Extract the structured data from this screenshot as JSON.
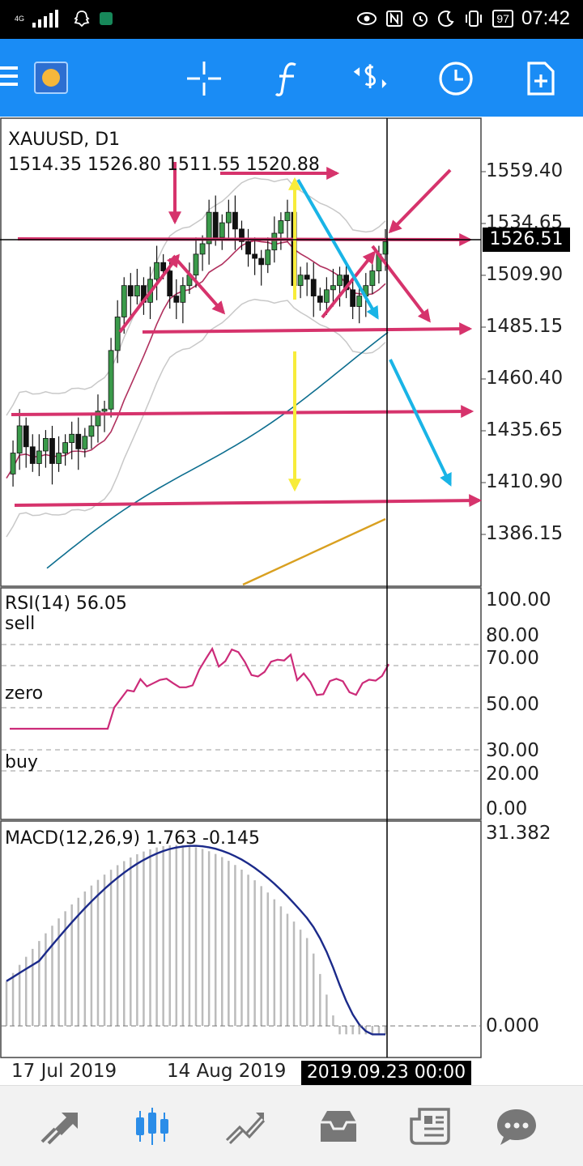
{
  "status": {
    "network": "4G",
    "battery": "97",
    "time": "07:42"
  },
  "toolbar": {
    "icons": [
      "menu-icon",
      "app-logo-icon",
      "crosshair-icon",
      "indicators-icon",
      "trade-icon",
      "timeframe-icon",
      "new-chart-icon"
    ]
  },
  "chart": {
    "symbol_line": "XAUUSD, D1",
    "ohlc_line": "1514.35 1526.80 1511.55 1520.88",
    "current_price": "1526.51",
    "price_ticks": [
      "1559.40",
      "1534.65",
      "1509.90",
      "1485.15",
      "1460.40",
      "1435.65",
      "1410.90",
      "1386.15"
    ],
    "cursor_date": "2019.09.23 00:00",
    "dates": [
      "17 Jul 2019",
      "14 Aug 2019"
    ],
    "colors": {
      "candle_up": "#3a9a4a",
      "candle_down": "#111111",
      "bands": "#c8c8c8",
      "ma_fast": "#b0305e",
      "ma_slow": "#0d6e8f",
      "ma_long": "#d9a020",
      "drawing_pink": "#d6336c",
      "drawing_cyan": "#19b4e6",
      "drawing_yellow": "#f7ec3a"
    }
  },
  "rsi": {
    "title": "RSI(14) 56.05",
    "label_sell": "sell",
    "label_zero": "zero",
    "label_buy": "buy",
    "levels": [
      "100.00",
      "80.00",
      "70.00",
      "50.00",
      "30.00",
      "20.00",
      "0.00"
    ]
  },
  "macd": {
    "title": "MACD(12,26,9) 1.763 -0.145",
    "max_label": "31.382",
    "zero_label": "0.000"
  },
  "bottomnav": {
    "items": [
      "quotes-icon",
      "chart-icon",
      "trade-icon",
      "history-icon",
      "news-icon",
      "messages-icon"
    ],
    "active": "chart-icon"
  },
  "chart_data": [
    {
      "type": "line",
      "title": "XAUUSD, D1",
      "y_ticks": [
        1559.4,
        1534.65,
        1509.9,
        1485.15,
        1460.4,
        1435.65,
        1410.9,
        1386.15
      ],
      "x_ticks": [
        "17 Jul 2019",
        "14 Aug 2019",
        "2019.09.23 00:00"
      ],
      "series": [
        {
          "name": "",
          "values": [
            1415,
            1425,
            1438,
            1428,
            1420,
            1426,
            1432,
            1420,
            1425,
            1430,
            1434,
            1427,
            1433,
            1438,
            1445,
            1446,
            1474,
            1490,
            1505,
            1500,
            1505,
            1497,
            1508,
            1516,
            1512,
            1500,
            1497,
            1505,
            1510,
            1520,
            1525,
            1540,
            1528,
            1535,
            1540,
            1532,
            1526,
            1520,
            1518,
            1515,
            1522,
            1530,
            1536,
            1540,
            1505,
            1510,
            1508,
            1500,
            1497,
            1503,
            1505,
            1510,
            1503,
            1495,
            1500,
            1505,
            1512,
            1520,
            1526
          ]
        }
      ]
    }
  ]
}
